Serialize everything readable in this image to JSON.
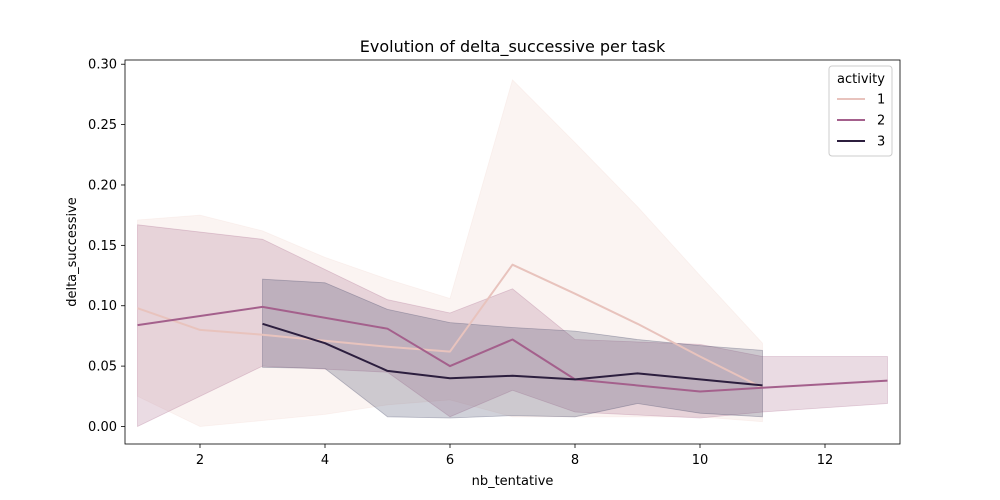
{
  "chart_data": {
    "type": "line",
    "title": "Evolution of delta_successive per task",
    "xlabel": "nb_tentative",
    "ylabel": "delta_successive",
    "xlim": [
      0.8,
      13.2
    ],
    "ylim": [
      -0.0145,
      0.3035
    ],
    "x_ticks": [
      2,
      4,
      6,
      8,
      10,
      12
    ],
    "y_ticks": [
      0.0,
      0.05,
      0.1,
      0.15,
      0.2,
      0.25,
      0.3
    ],
    "y_tick_labels": [
      "0.00",
      "0.05",
      "0.10",
      "0.15",
      "0.20",
      "0.25",
      "0.30"
    ],
    "grid": false,
    "legend": {
      "title": "activity",
      "placement": "top-right"
    },
    "series": [
      {
        "name": "1",
        "color": "#e8c3bd",
        "band_color": "#f4dcd6",
        "x": [
          1,
          2,
          3,
          4,
          5,
          6,
          7,
          8,
          9,
          10,
          11
        ],
        "y": [
          0.098,
          0.08,
          0.076,
          0.071,
          0.066,
          0.062,
          0.134,
          0.11,
          0.085,
          0.058,
          0.032
        ],
        "lower": [
          0.025,
          0.0,
          0.005,
          0.01,
          0.018,
          0.022,
          0.008,
          0.008,
          0.008,
          0.008,
          0.004
        ],
        "upper": [
          0.171,
          0.175,
          0.162,
          0.14,
          0.122,
          0.106,
          0.287,
          0.235,
          0.182,
          0.125,
          0.069
        ]
      },
      {
        "name": "2",
        "color": "#a4608c",
        "band_color": "#b57c9c",
        "x": [
          1,
          3,
          5,
          6,
          7,
          8,
          10,
          11,
          13
        ],
        "y": [
          0.084,
          0.099,
          0.081,
          0.05,
          0.072,
          0.039,
          0.029,
          0.032,
          0.038
        ],
        "lower": [
          0.0,
          0.05,
          0.045,
          0.008,
          0.03,
          0.012,
          0.007,
          0.012,
          0.019
        ],
        "upper": [
          0.167,
          0.155,
          0.105,
          0.094,
          0.114,
          0.072,
          0.068,
          0.058,
          0.058
        ]
      },
      {
        "name": "3",
        "color": "#2c1e3e",
        "band_color": "#4a4d6c",
        "x": [
          3,
          4,
          5,
          6,
          7,
          8,
          9,
          10,
          11
        ],
        "y": [
          0.085,
          0.069,
          0.046,
          0.04,
          0.042,
          0.039,
          0.044,
          0.039,
          0.034
        ],
        "lower": [
          0.049,
          0.048,
          0.008,
          0.007,
          0.009,
          0.008,
          0.019,
          0.011,
          0.008
        ],
        "upper": [
          0.122,
          0.119,
          0.097,
          0.086,
          0.082,
          0.079,
          0.072,
          0.067,
          0.063
        ]
      }
    ]
  }
}
